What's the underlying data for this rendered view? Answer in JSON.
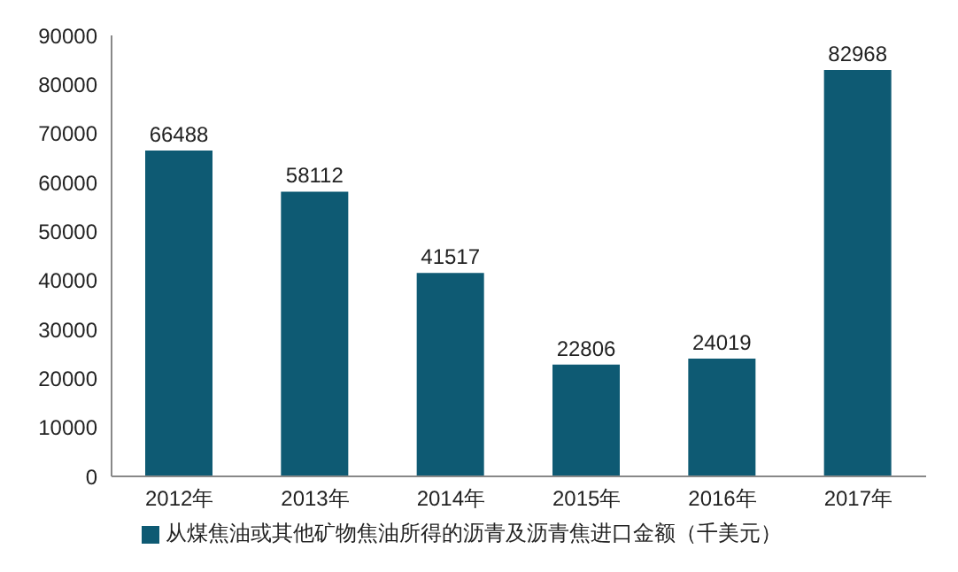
{
  "chart_data": {
    "type": "bar",
    "categories": [
      "2012年",
      "2013年",
      "2014年",
      "2015年",
      "2016年",
      "2017年"
    ],
    "series": [
      {
        "name": "从煤焦油或其他矿物焦油所得的沥青及沥青焦进口金额（千美元）",
        "color": "#0e5a73",
        "values": [
          66488,
          58112,
          41517,
          22806,
          24019,
          82968
        ]
      }
    ],
    "ylim": [
      0,
      90000
    ],
    "yticks": [
      0,
      10000,
      20000,
      30000,
      40000,
      50000,
      60000,
      70000,
      80000,
      90000
    ],
    "data_labels": true,
    "legend": "bottom"
  }
}
